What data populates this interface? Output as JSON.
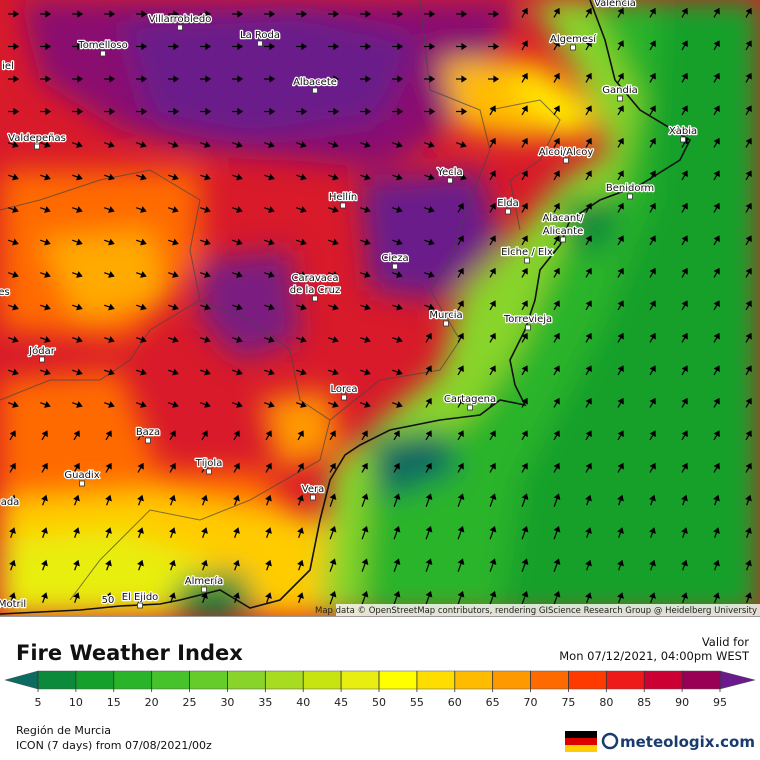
{
  "map": {
    "cities": [
      "Valencia",
      "Villarrobledo",
      "La Roda",
      "Tomelloso",
      "iel",
      "Albacete",
      "Algemesí",
      "Gandia",
      "Xàbia",
      "Valdepeñas",
      "Alcoi/Alcoy",
      "Yecla",
      "Benidorm",
      "Hellín",
      "Elda",
      "Alacant/",
      "Alicante",
      "Elche / Elx",
      "Cieza",
      "Caravaca",
      "de la Cruz",
      "es",
      "Murcia",
      "Torrevieja",
      "Jódar",
      "Lorca",
      "Cartagena",
      "Baza",
      "Tíjola",
      "Guadix",
      "ada",
      "Vera",
      "Almería",
      "El Ejido",
      "50",
      "Motril"
    ],
    "attribution": "Map data © OpenStreetMap contributors, rendering GIScience Research Group @ Heidelberg University"
  },
  "legend": {
    "title": "Fire Weather Index",
    "valid_label": "Valid for",
    "valid_time": "Mon 07/12/2021, 04:00pm WEST",
    "ticks": [
      5,
      10,
      15,
      20,
      25,
      30,
      35,
      40,
      45,
      50,
      55,
      60,
      65,
      70,
      75,
      80,
      85,
      90,
      95
    ],
    "colors": [
      "#0b6b60",
      "#0a8a3a",
      "#14a02a",
      "#2ab42a",
      "#46c22a",
      "#66cc2a",
      "#88d42a",
      "#a8dc20",
      "#c8e410",
      "#e8ee10",
      "#ffff00",
      "#ffdd00",
      "#ffbb00",
      "#ff9900",
      "#ff6a00",
      "#ff3a00",
      "#ee1a1a",
      "#cc0033",
      "#990055",
      "#6a1a8a"
    ]
  },
  "footer": {
    "region": "Región de Murcia",
    "model": "ICON (7 days) from  07/08/2021/00z",
    "brand": "meteologix.com"
  }
}
